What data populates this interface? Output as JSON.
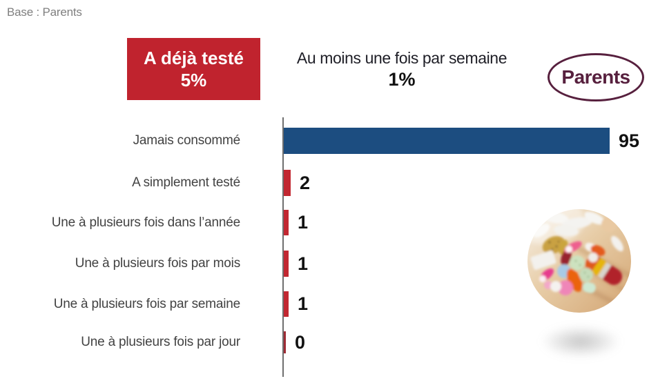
{
  "base_note": "Base : Parents",
  "callouts": {
    "tested": {
      "label": "A déjà testé",
      "value": "5%"
    },
    "weekly": {
      "label": "Au moins une fois par semaine",
      "value": "1%"
    }
  },
  "badge": {
    "label": "Parents"
  },
  "colors": {
    "accent_red": "#c0232e",
    "bar_blue": "#1c4d80",
    "bar_red": "#c22731",
    "bar_dark_red": "#9e2b35",
    "badge_maroon": "#57203e",
    "axis_gray": "#6e6e6e",
    "note_gray": "#7f7f7f"
  },
  "chart_data": {
    "type": "bar",
    "orientation": "horizontal",
    "title": "",
    "xlabel": "",
    "ylabel": "",
    "xlim": [
      0,
      100
    ],
    "grid": false,
    "legend": "none",
    "categories": [
      "Jamais consommé",
      "A simplement testé",
      "Une à plusieurs fois dans l’année",
      "Une à plusieurs fois par mois",
      "Une à plusieurs fois par semaine",
      "Une à plusieurs fois par jour"
    ],
    "values": [
      95,
      2,
      1,
      1,
      1,
      0
    ],
    "value_labels": [
      "95",
      "2",
      "1",
      "1",
      "1",
      "0"
    ],
    "bar_colors": [
      "#1c4d80",
      "#c22731",
      "#c22731",
      "#c22731",
      "#c22731",
      "#9e2b35"
    ],
    "annotations": [
      "A déjà testé 5%",
      "Au moins une fois par semaine 1%"
    ]
  }
}
